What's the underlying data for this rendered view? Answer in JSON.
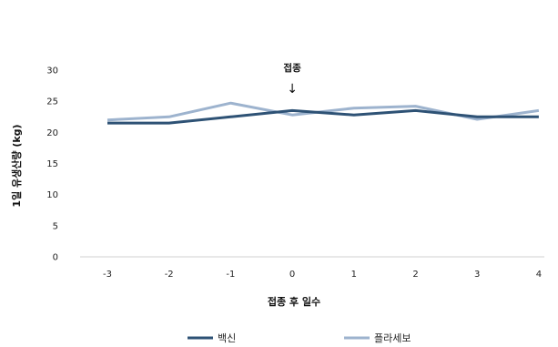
{
  "chart_data": {
    "type": "line",
    "x": [
      -3,
      -2,
      -1,
      0,
      1,
      2,
      3,
      4
    ],
    "series": [
      {
        "name": "백신",
        "values": [
          21.5,
          21.5,
          22.5,
          23.5,
          22.8,
          23.5,
          22.5,
          22.5
        ],
        "color": "#2e5275"
      },
      {
        "name": "플라세보",
        "values": [
          22.0,
          22.5,
          24.7,
          22.8,
          23.9,
          24.2,
          22.1,
          23.5
        ],
        "color": "#9db3ce"
      }
    ],
    "xlabel": "접종 후 일수",
    "ylabel": "1일 유생산량 (kg)",
    "ylim": [
      0,
      30
    ],
    "yticks": [
      0,
      5,
      10,
      15,
      20,
      25,
      30
    ],
    "grid": false,
    "legend": "bottom",
    "annotation": {
      "text": "접종",
      "x": 0,
      "arrow": "↓"
    }
  }
}
